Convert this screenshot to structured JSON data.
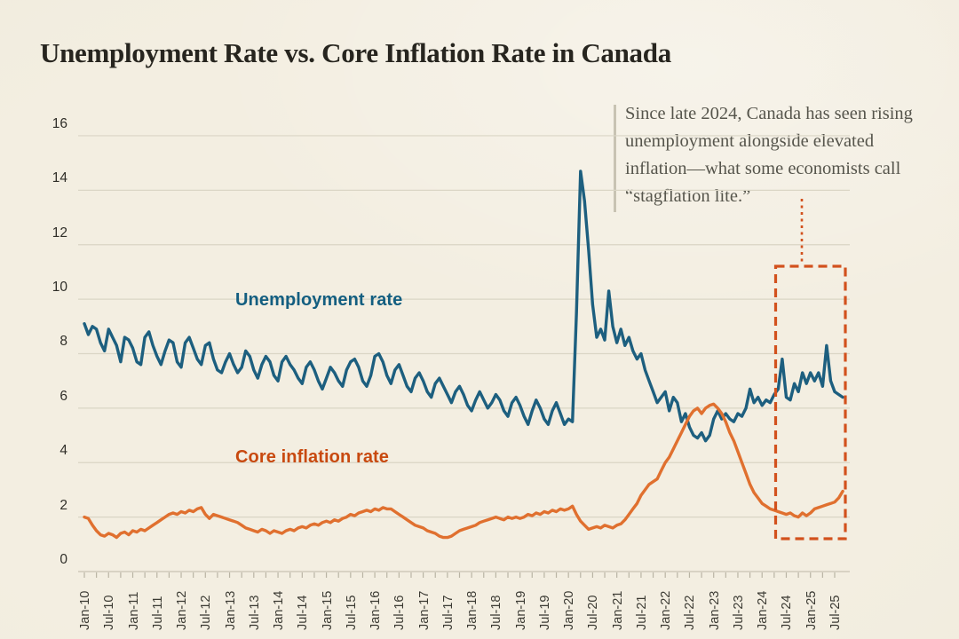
{
  "title": "Unemployment Rate vs. Core Inflation Rate in Canada",
  "annotation": {
    "text": "Since late 2024, Canada has seen rising\nunemployment alongside elevated\ninflation—what some economists call\n“stagflation lite.”"
  },
  "series_labels": {
    "unemployment": "Unemployment rate",
    "inflation": "Core inflation rate"
  },
  "colors": {
    "background": "#f1ecde",
    "unemployment_line": "#1d5f7f",
    "inflation_line": "#e0702f",
    "unemployment_label": "#135e80",
    "inflation_label": "#c8490f",
    "highlight_box": "#d2511d",
    "gridline": "#dad5c5",
    "axis": "#c7c2b2",
    "tick": "#b9b4a4",
    "annotation_text": "#56554c"
  },
  "chart_data": {
    "type": "line",
    "title": "Unemployment Rate vs. Core Inflation Rate in Canada",
    "x_start": "Jan-2010",
    "frequency": "monthly",
    "ylim": [
      0,
      16
    ],
    "y_ticks": [
      0,
      2,
      4,
      6,
      8,
      10,
      12,
      14,
      16
    ],
    "grid": "horizontal",
    "legend_position": "inline-labels",
    "x_tick_labels": [
      "Jan-10",
      "Jul-10",
      "Jan-11",
      "Jul-11",
      "Jan-12",
      "Jul-12",
      "Jan-13",
      "Jul-13",
      "Jan-14",
      "Jul-14",
      "Jan-15",
      "Jul-15",
      "Jan-16",
      "Jul-16",
      "Jan-17",
      "Jul-17",
      "Jan-18",
      "Jul-18",
      "Jan-19",
      "Jul-19",
      "Jan-20",
      "Jul-20",
      "Jan-21",
      "Jul-21",
      "Jan-22",
      "Jul-22",
      "Jan-23",
      "Jul-23",
      "Jan-24",
      "Jul-24",
      "Jan-25",
      "Jul-25"
    ],
    "series": [
      {
        "name": "Unemployment rate",
        "color": "#1d5f7f",
        "values": [
          9.1,
          8.7,
          9.0,
          8.9,
          8.4,
          8.1,
          8.9,
          8.6,
          8.3,
          7.7,
          8.6,
          8.5,
          8.2,
          7.7,
          7.6,
          8.6,
          8.8,
          8.3,
          7.9,
          7.6,
          8.1,
          8.5,
          8.4,
          7.7,
          7.5,
          8.4,
          8.6,
          8.2,
          7.8,
          7.6,
          8.3,
          8.4,
          7.8,
          7.4,
          7.3,
          7.7,
          8.0,
          7.6,
          7.3,
          7.5,
          8.1,
          7.9,
          7.4,
          7.1,
          7.6,
          7.9,
          7.7,
          7.2,
          7.0,
          7.7,
          7.9,
          7.6,
          7.4,
          7.1,
          6.9,
          7.5,
          7.7,
          7.4,
          7.0,
          6.7,
          7.1,
          7.5,
          7.3,
          7.0,
          6.8,
          7.4,
          7.7,
          7.8,
          7.5,
          7.0,
          6.8,
          7.2,
          7.9,
          8.0,
          7.7,
          7.2,
          6.9,
          7.4,
          7.6,
          7.2,
          6.8,
          6.6,
          7.1,
          7.3,
          7.0,
          6.6,
          6.4,
          6.9,
          7.1,
          6.8,
          6.5,
          6.2,
          6.6,
          6.8,
          6.5,
          6.1,
          5.9,
          6.3,
          6.6,
          6.3,
          6.0,
          6.2,
          6.5,
          6.3,
          5.9,
          5.7,
          6.2,
          6.4,
          6.1,
          5.7,
          5.4,
          5.9,
          6.3,
          6.0,
          5.6,
          5.4,
          5.9,
          6.2,
          5.8,
          5.4,
          5.6,
          5.5,
          9.5,
          14.7,
          13.6,
          11.8,
          9.8,
          8.6,
          8.9,
          8.5,
          10.3,
          9.0,
          8.4,
          8.9,
          8.3,
          8.6,
          8.1,
          7.8,
          8.0,
          7.4,
          7.0,
          6.6,
          6.2,
          6.4,
          6.6,
          5.9,
          6.4,
          6.2,
          5.5,
          5.8,
          5.3,
          5.0,
          4.9,
          5.1,
          4.8,
          5.0,
          5.6,
          5.9,
          5.6,
          5.8,
          5.6,
          5.5,
          5.8,
          5.7,
          6.0,
          6.7,
          6.2,
          6.4,
          6.1,
          6.3,
          6.2,
          6.5,
          6.7,
          7.8,
          6.4,
          6.3,
          6.9,
          6.6,
          7.3,
          6.9,
          7.3,
          7.0,
          7.3,
          6.8,
          8.3,
          7.0,
          6.6,
          6.5,
          6.4
        ]
      },
      {
        "name": "Core inflation rate",
        "color": "#e0702f",
        "values": [
          2.0,
          1.95,
          1.7,
          1.5,
          1.35,
          1.3,
          1.4,
          1.35,
          1.25,
          1.4,
          1.45,
          1.35,
          1.5,
          1.45,
          1.55,
          1.5,
          1.6,
          1.7,
          1.8,
          1.9,
          2.0,
          2.1,
          2.15,
          2.1,
          2.2,
          2.15,
          2.25,
          2.2,
          2.3,
          2.35,
          2.1,
          1.95,
          2.1,
          2.05,
          2.0,
          1.95,
          1.9,
          1.85,
          1.8,
          1.7,
          1.6,
          1.55,
          1.5,
          1.45,
          1.55,
          1.5,
          1.4,
          1.5,
          1.45,
          1.4,
          1.5,
          1.55,
          1.5,
          1.6,
          1.65,
          1.6,
          1.7,
          1.75,
          1.7,
          1.8,
          1.85,
          1.8,
          1.9,
          1.85,
          1.95,
          2.0,
          2.1,
          2.05,
          2.15,
          2.2,
          2.25,
          2.2,
          2.3,
          2.25,
          2.35,
          2.3,
          2.3,
          2.2,
          2.1,
          2.0,
          1.9,
          1.8,
          1.7,
          1.65,
          1.6,
          1.5,
          1.45,
          1.4,
          1.3,
          1.25,
          1.25,
          1.3,
          1.4,
          1.5,
          1.55,
          1.6,
          1.65,
          1.7,
          1.8,
          1.85,
          1.9,
          1.95,
          2.0,
          1.95,
          1.9,
          2.0,
          1.95,
          2.0,
          1.95,
          2.0,
          2.1,
          2.05,
          2.15,
          2.1,
          2.2,
          2.15,
          2.25,
          2.2,
          2.3,
          2.25,
          2.3,
          2.4,
          2.1,
          1.85,
          1.7,
          1.55,
          1.6,
          1.65,
          1.6,
          1.7,
          1.65,
          1.6,
          1.7,
          1.75,
          1.9,
          2.1,
          2.3,
          2.5,
          2.8,
          3.0,
          3.2,
          3.3,
          3.4,
          3.7,
          4.0,
          4.2,
          4.5,
          4.8,
          5.1,
          5.4,
          5.7,
          5.9,
          6.0,
          5.8,
          6.0,
          6.1,
          6.15,
          6.0,
          5.8,
          5.5,
          5.1,
          4.8,
          4.4,
          4.0,
          3.6,
          3.2,
          2.9,
          2.7,
          2.5,
          2.4,
          2.3,
          2.25,
          2.2,
          2.15,
          2.1,
          2.15,
          2.05,
          2.0,
          2.15,
          2.05,
          2.15,
          2.3,
          2.35,
          2.4,
          2.45,
          2.5,
          2.55,
          2.7,
          2.95
        ]
      }
    ],
    "highlight": {
      "label": "stagflation lite period",
      "x_range": [
        "Jul-2024",
        "Oct-2025"
      ],
      "style": "dashed-box-with-dotted-connector"
    }
  }
}
